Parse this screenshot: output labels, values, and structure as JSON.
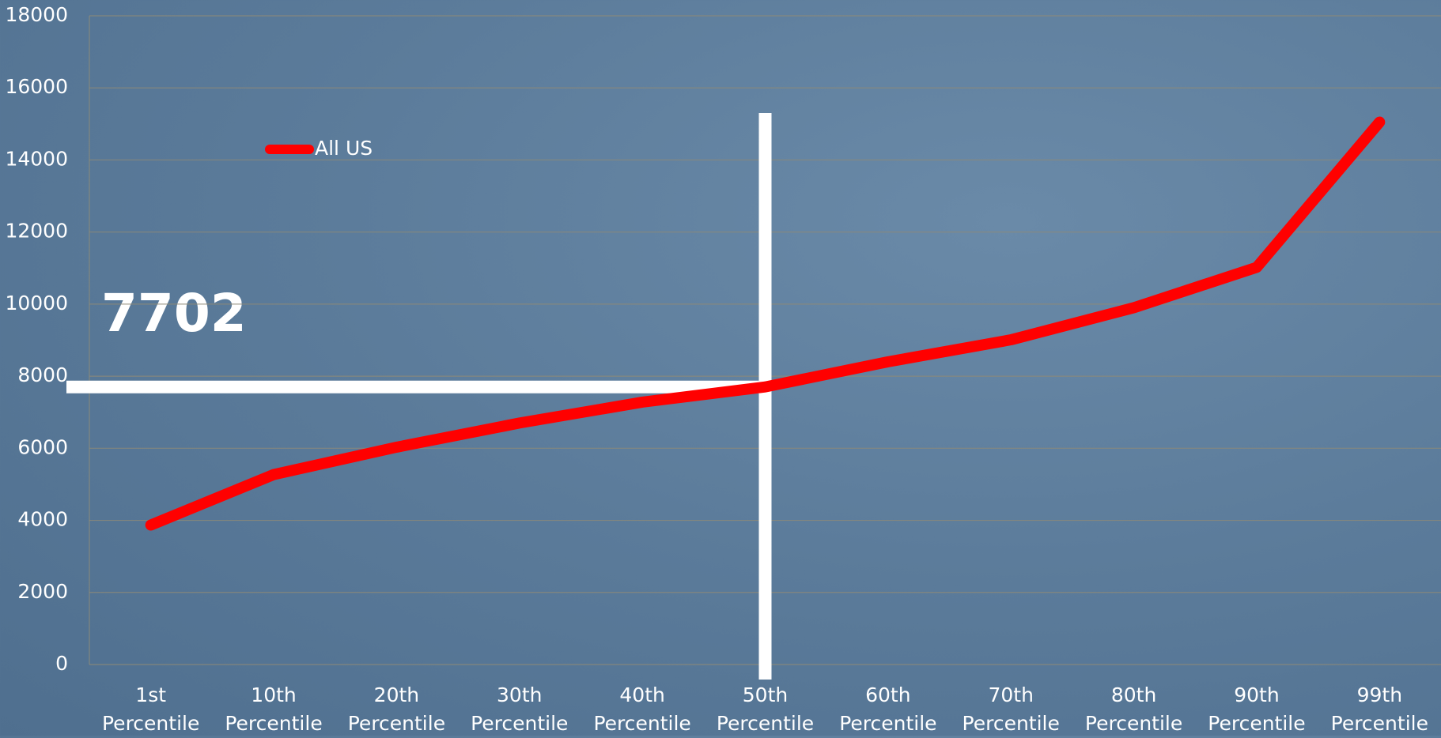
{
  "chart_data": {
    "type": "line",
    "categories": [
      "1st Percentile",
      "10th Percentile",
      "20th Percentile",
      "30th Percentile",
      "40th Percentile",
      "50th Percentile",
      "60th Percentile",
      "70th Percentile",
      "80th Percentile",
      "90th Percentile",
      "99th Percentile"
    ],
    "series": [
      {
        "name": "All US",
        "color": "#ff0000",
        "values": [
          3870,
          5270,
          6030,
          6700,
          7280,
          7702,
          8400,
          9010,
          9900,
          11020,
          15050
        ]
      }
    ],
    "ylim": [
      0,
      18000
    ],
    "yticks": [
      0,
      2000,
      4000,
      6000,
      8000,
      10000,
      12000,
      14000,
      16000,
      18000
    ],
    "grid": true,
    "legend": "upper left",
    "annotation": 7702
  }
}
